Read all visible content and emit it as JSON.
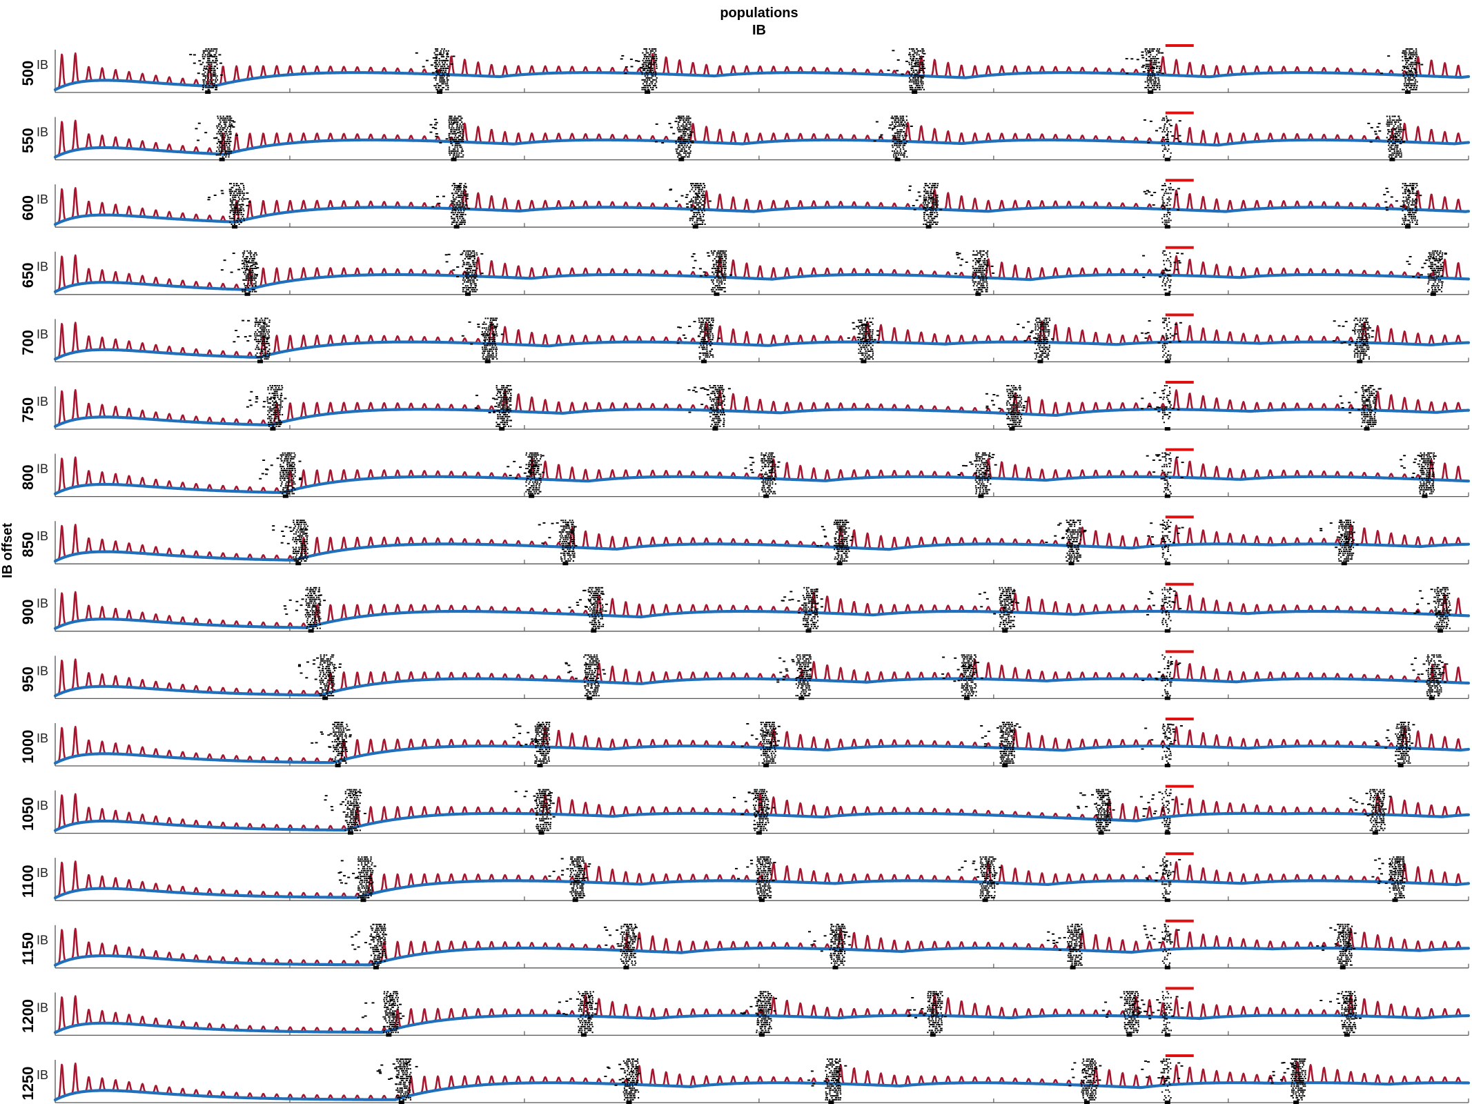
{
  "title_lines": [
    "populations",
    "IB"
  ],
  "ylabel": "IB offset",
  "population_label": "IB",
  "chart_data": {
    "type": "line",
    "title": "populations IB",
    "ylabel": "IB offset",
    "xlabel": "",
    "grid": false,
    "legend": "none",
    "series_colors": {
      "spiking_activity": "#a6162f",
      "population_envelope": "#1f6fba",
      "raster": "#000000",
      "marker": "#e01010"
    },
    "rows": [
      {
        "offset": "500",
        "bursts": [
          0.108,
          0.272,
          0.419,
          0.608,
          0.775,
          0.957
        ]
      },
      {
        "offset": "550",
        "bursts": [
          0.118,
          0.282,
          0.443,
          0.596,
          0.787,
          0.946
        ]
      },
      {
        "offset": "600",
        "bursts": [
          0.127,
          0.284,
          0.453,
          0.618,
          0.787,
          0.957
        ]
      },
      {
        "offset": "650",
        "bursts": [
          0.136,
          0.292,
          0.468,
          0.653,
          0.787,
          0.975
        ]
      },
      {
        "offset": "700",
        "bursts": [
          0.145,
          0.306,
          0.459,
          0.572,
          0.697,
          0.787,
          0.923
        ]
      },
      {
        "offset": "750",
        "bursts": [
          0.154,
          0.316,
          0.467,
          0.677,
          0.787,
          0.928
        ]
      },
      {
        "offset": "800",
        "bursts": [
          0.163,
          0.337,
          0.503,
          0.655,
          0.787,
          0.969
        ]
      },
      {
        "offset": "850",
        "bursts": [
          0.172,
          0.361,
          0.555,
          0.719,
          0.787,
          0.912
        ]
      },
      {
        "offset": "900",
        "bursts": [
          0.181,
          0.381,
          0.533,
          0.672,
          0.787,
          0.98
        ]
      },
      {
        "offset": "950",
        "bursts": [
          0.191,
          0.378,
          0.528,
          0.645,
          0.787,
          0.974
        ]
      },
      {
        "offset": "1000",
        "bursts": [
          0.2,
          0.343,
          0.503,
          0.672,
          0.787,
          0.952
        ]
      },
      {
        "offset": "1050",
        "bursts": [
          0.209,
          0.344,
          0.498,
          0.74,
          0.787,
          0.934
        ]
      },
      {
        "offset": "1100",
        "bursts": [
          0.218,
          0.368,
          0.5,
          0.658,
          0.787,
          0.948
        ]
      },
      {
        "offset": "1150",
        "bursts": [
          0.227,
          0.404,
          0.552,
          0.72,
          0.787,
          0.911
        ]
      },
      {
        "offset": "1200",
        "bursts": [
          0.236,
          0.374,
          0.5,
          0.621,
          0.76,
          0.787,
          0.914
        ]
      },
      {
        "offset": "1250",
        "bursts": [
          0.245,
          0.406,
          0.549,
          0.73,
          0.787,
          0.878
        ]
      }
    ],
    "marker_position": 0.787
  }
}
